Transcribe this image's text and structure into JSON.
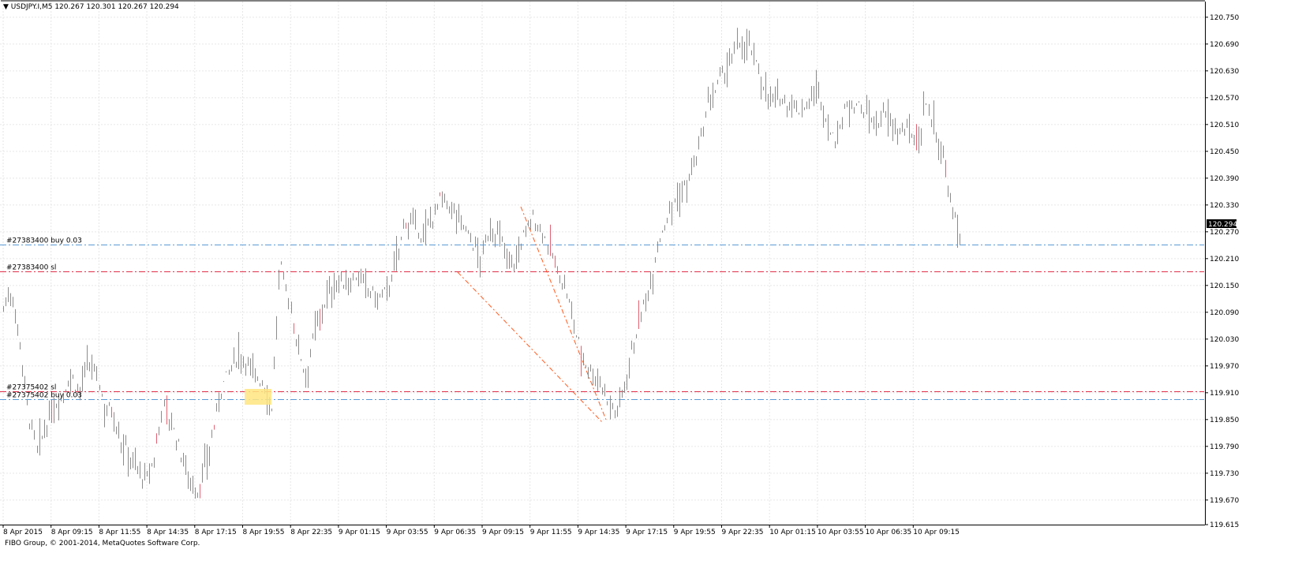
{
  "window": {
    "symbol_title": "USDJPY.I,M5",
    "ohlc": "120.267 120.301 120.267 120.294",
    "copyright": "FIBO Group, © 2001-2014, MetaQuotes Software Corp.",
    "current_price": "120.294"
  },
  "colors": {
    "candles": "#8c8c8c",
    "candle_red": "#e06070",
    "buy_line": "#5a9bd5",
    "sl_line": "#e0304a",
    "trend_line": "#ff5a1e",
    "marker_bg": "#ffe680",
    "price_label_bg": "#000000"
  },
  "price_axis": [
    "120.750",
    "120.690",
    "120.630",
    "120.570",
    "120.510",
    "120.450",
    "120.390",
    "120.330",
    "120.270",
    "120.210",
    "120.150",
    "120.090",
    "120.030",
    "119.970",
    "119.910",
    "119.850",
    "119.790",
    "119.730",
    "119.670",
    "119.615"
  ],
  "time_axis": [
    "8 Apr 2015",
    "8 Apr 09:15",
    "8 Apr 11:55",
    "8 Apr 14:35",
    "8 Apr 17:15",
    "8 Apr 19:55",
    "8 Apr 22:35",
    "9 Apr 01:15",
    "9 Apr 03:55",
    "9 Apr 06:35",
    "9 Apr 09:15",
    "9 Apr 11:55",
    "9 Apr 14:35",
    "9 Apr 17:15",
    "9 Apr 19:55",
    "9 Apr 22:35",
    "10 Apr 01:15",
    "10 Apr 03:55",
    "10 Apr 06:35",
    "10 Apr 09:15"
  ],
  "orders": [
    {
      "label": "#27383400 buy 0.03",
      "price": 120.242,
      "kind": "buy"
    },
    {
      "label": "#27383400 sl",
      "price": 120.181,
      "kind": "sl"
    },
    {
      "label": "#27375402 sl",
      "price": 119.913,
      "kind": "sl"
    },
    {
      "label": "#27375402 buy 0.03",
      "price": 119.895,
      "kind": "buy"
    }
  ],
  "chart_data": {
    "type": "line",
    "y_range": [
      119.615,
      120.785
    ],
    "grid": true,
    "series": [
      {
        "values": [
          120.1,
          120.14,
          120.02,
          119.86,
          119.78,
          119.83,
          119.88,
          119.9,
          119.95,
          119.91,
          119.97,
          119.96,
          119.88,
          119.87,
          119.8,
          119.77,
          119.74,
          119.71,
          119.76,
          119.89,
          119.84,
          119.78,
          119.73,
          119.68,
          119.74,
          119.82,
          119.92,
          119.96,
          120.0,
          119.98,
          119.95,
          119.93,
          119.88,
          120.2,
          120.12,
          120.02,
          119.95,
          120.04,
          120.1,
          120.14,
          120.16,
          120.15,
          120.17,
          120.15,
          120.13,
          120.12,
          120.15,
          120.22,
          120.3,
          120.28,
          120.26,
          120.3,
          120.34,
          120.33,
          120.31,
          120.28,
          120.24,
          120.21,
          120.28,
          120.26,
          120.22,
          120.2,
          120.26,
          120.3,
          120.28,
          120.24,
          120.18,
          120.14,
          120.06,
          119.99,
          119.96,
          119.94,
          119.9,
          119.86,
          119.93,
          120.02,
          120.08,
          120.15,
          120.24,
          120.3,
          120.34,
          120.36,
          120.4,
          120.46,
          120.55,
          120.59,
          120.63,
          120.66,
          120.7,
          120.68,
          120.63,
          120.58,
          120.56,
          120.57,
          120.55,
          120.54,
          120.56,
          120.59,
          120.52,
          120.47,
          120.52,
          120.57,
          120.55,
          120.53,
          120.51,
          120.53,
          120.51,
          120.49,
          120.5,
          120.47,
          120.56,
          120.5,
          120.43,
          120.32,
          120.26
        ]
      }
    ]
  }
}
